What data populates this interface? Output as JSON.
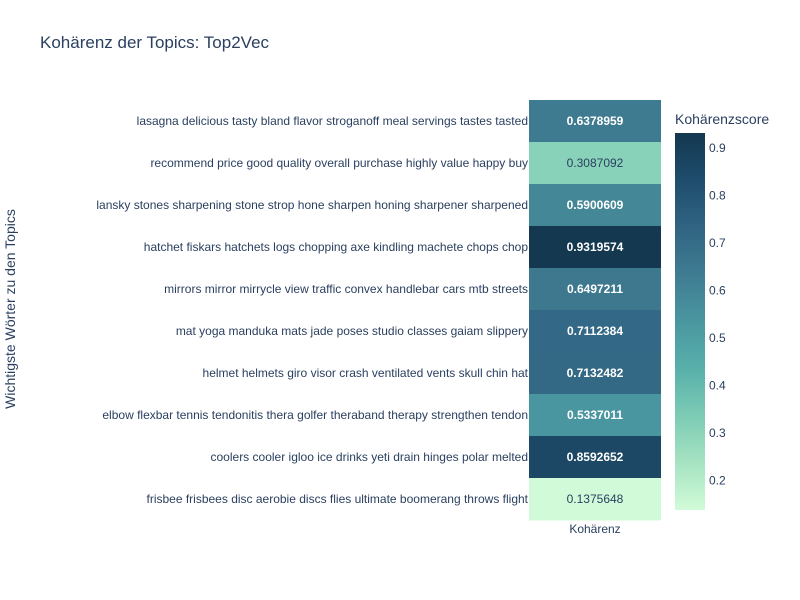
{
  "chart_data": {
    "type": "heatmap",
    "title": "Kohärenz der Topics: Top2Vec",
    "xlabel": "",
    "ylabel": "Wichtigste Wörter zu den Topics",
    "x_categories": [
      "Kohärenz"
    ],
    "y_categories": [
      "lasagna delicious tasty bland flavor stroganoff meal servings tastes tasted",
      "recommend price good quality overall purchase highly value happy buy",
      "lansky stones sharpening stone strop hone sharpen honing sharpener sharpened",
      "hatchet fiskars hatchets logs chopping axe kindling machete chops chop",
      "mirrors mirror mirrycle view traffic convex handlebar cars mtb streets",
      "mat yoga manduka mats jade poses studio classes gaiam slippery",
      "helmet helmets giro visor crash ventilated vents skull chin hat",
      "elbow flexbar tennis tendonitis thera golfer theraband therapy strengthen tendon",
      "coolers cooler igloo ice drinks yeti drain hinges polar melted",
      "frisbee frisbees disc aerobie discs flies ultimate boomerang throws flight"
    ],
    "values": [
      0.6378959,
      0.3087092,
      0.5900609,
      0.9319574,
      0.6497211,
      0.7112384,
      0.7132482,
      0.5337011,
      0.8592652,
      0.1375648
    ],
    "value_labels": [
      "0.6378959",
      "0.3087092",
      "0.5900609",
      "0.9319574",
      "0.6497211",
      "0.7112384",
      "0.7132482",
      "0.5337011",
      "0.8592652",
      "0.1375648"
    ],
    "colorbar": {
      "title": "Kohärenzscore",
      "ticks": [
        0.2,
        0.3,
        0.4,
        0.5,
        0.6,
        0.7,
        0.8,
        0.9
      ],
      "tick_labels": [
        "0.2",
        "0.3",
        "0.4",
        "0.5",
        "0.6",
        "0.7",
        "0.8",
        "0.9"
      ],
      "range": [
        0.1375648,
        0.9319574
      ]
    },
    "colorscale": [
      "#d1fbd8",
      "#a6e3c2",
      "#7ccbb5",
      "#58b0aa",
      "#4a96a0",
      "#3f7c92",
      "#306482",
      "#1f4d6d",
      "#13384f"
    ]
  }
}
